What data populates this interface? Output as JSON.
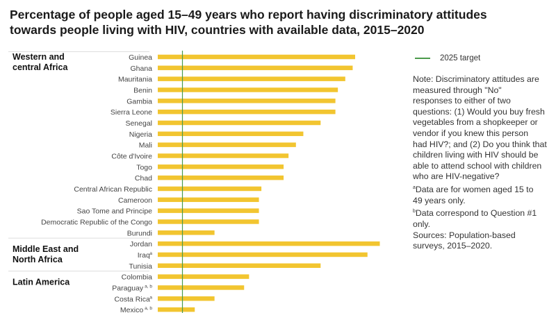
{
  "title": [
    "Percentage of people aged 15–49 years who report having discriminatory attitudes",
    "towards people living with HIV, countries with available data, 2015–2020"
  ],
  "legend": {
    "target_label": "2025 target",
    "target_color": "#4a9a4a"
  },
  "note_lines": [
    "Note: Discriminatory attitudes are",
    "measured through \"No\"",
    "responses to either of two",
    "questions: (1) Would you buy fresh",
    "vegetables from a shopkeeper or",
    "vendor if you knew this person",
    "had HIV?; and (2) Do you think that",
    "children living with HIV should be",
    "able to attend school with children",
    "who are HIV-negative?"
  ],
  "footnotes": [
    {
      "mark": "a",
      "lines": [
        "Data are for women aged 15 to",
        "49 years only."
      ]
    },
    {
      "mark": "b",
      "lines": [
        "Data correspond to Question #1",
        "only."
      ]
    }
  ],
  "sources": [
    "Sources: Population-based",
    "surveys, 2015–2020."
  ],
  "chart_data": {
    "type": "bar",
    "orientation": "horizontal",
    "unit": "%",
    "xlim": [
      0,
      100
    ],
    "bar_color": "#f2c530",
    "target_value": 10,
    "target_label": "2025 target",
    "groups": [
      {
        "name": [
          "Western and",
          "central Africa"
        ],
        "categories": [
          {
            "label": "Guinea",
            "sup": "",
            "value": 80
          },
          {
            "label": "Ghana",
            "sup": "",
            "value": 79
          },
          {
            "label": "Mauritania",
            "sup": "",
            "value": 76
          },
          {
            "label": "Benin",
            "sup": "",
            "value": 73
          },
          {
            "label": "Gambia",
            "sup": "",
            "value": 72
          },
          {
            "label": "Sierra Leone",
            "sup": "",
            "value": 72
          },
          {
            "label": "Senegal",
            "sup": "",
            "value": 66
          },
          {
            "label": "Nigeria",
            "sup": "",
            "value": 59
          },
          {
            "label": "Mali",
            "sup": "",
            "value": 56
          },
          {
            "label": "Côte d'Ivoire",
            "sup": "",
            "value": 53
          },
          {
            "label": "Togo",
            "sup": "",
            "value": 51
          },
          {
            "label": "Chad",
            "sup": "",
            "value": 51
          },
          {
            "label": "Central African Republic",
            "sup": "",
            "value": 42
          },
          {
            "label": "Cameroon",
            "sup": "",
            "value": 41
          },
          {
            "label": "Sao Tome and Principe",
            "sup": "",
            "value": 41
          },
          {
            "label": "Democratic Republic of the Congo",
            "sup": "",
            "value": 41
          },
          {
            "label": "Burundi",
            "sup": "",
            "value": 23
          }
        ]
      },
      {
        "name": [
          "Middle East and",
          "North Africa"
        ],
        "categories": [
          {
            "label": "Jordan",
            "sup": "",
            "value": 90
          },
          {
            "label": "Iraq",
            "sup": "a",
            "value": 85
          },
          {
            "label": "Tunisia",
            "sup": "",
            "value": 66
          }
        ]
      },
      {
        "name": [
          "Latin America"
        ],
        "categories": [
          {
            "label": "Colombia",
            "sup": "",
            "value": 37
          },
          {
            "label": "Paraguay",
            "sup": "a, b",
            "value": 35
          },
          {
            "label": "Costa Rica",
            "sup": "a",
            "value": 23
          },
          {
            "label": "Mexico",
            "sup": "a, b",
            "value": 15
          }
        ]
      }
    ]
  }
}
